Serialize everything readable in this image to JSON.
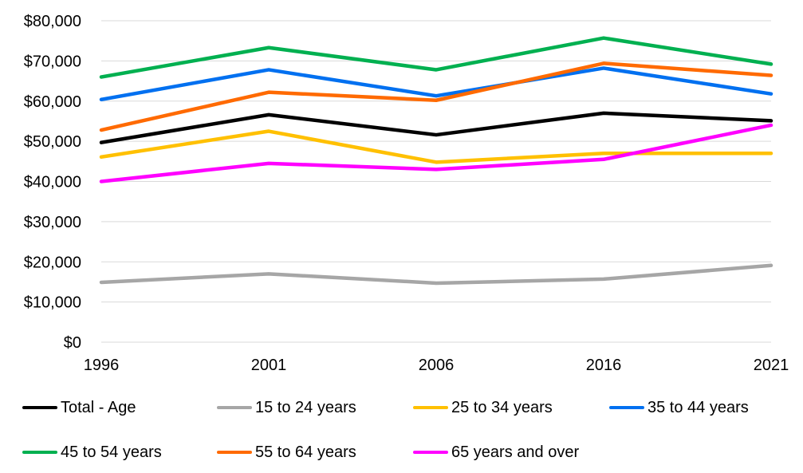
{
  "chart_data": {
    "type": "line",
    "categories": [
      "1996",
      "2001",
      "2006",
      "2016",
      "2021"
    ],
    "series": [
      {
        "name": "Total - Age",
        "color": "#000000",
        "values": [
          49700,
          56600,
          51600,
          57000,
          55100
        ]
      },
      {
        "name": "15 to 24 years",
        "color": "#a6a6a6",
        "values": [
          14900,
          17000,
          14700,
          15700,
          19100
        ]
      },
      {
        "name": "25 to 34 years",
        "color": "#ffc000",
        "values": [
          46100,
          52500,
          44800,
          47000,
          47000
        ]
      },
      {
        "name": "35 to 44 years",
        "color": "#0070f0",
        "values": [
          60400,
          67800,
          61300,
          68200,
          61800
        ]
      },
      {
        "name": "45 to 54 years",
        "color": "#00b050",
        "values": [
          66000,
          73300,
          67800,
          75700,
          69200
        ]
      },
      {
        "name": "55 to 64 years",
        "color": "#ff6a00",
        "values": [
          52800,
          62200,
          60200,
          69400,
          66400
        ]
      },
      {
        "name": "65 years and over",
        "color": "#ff00ff",
        "values": [
          40000,
          44500,
          43000,
          45500,
          54000
        ]
      }
    ],
    "y_ticks": [
      "$0",
      "$10,000",
      "$20,000",
      "$30,000",
      "$40,000",
      "$50,000",
      "$60,000",
      "$70,000",
      "$80,000"
    ],
    "ylim": [
      0,
      80000
    ],
    "grid": true,
    "legend_position": "bottom"
  }
}
